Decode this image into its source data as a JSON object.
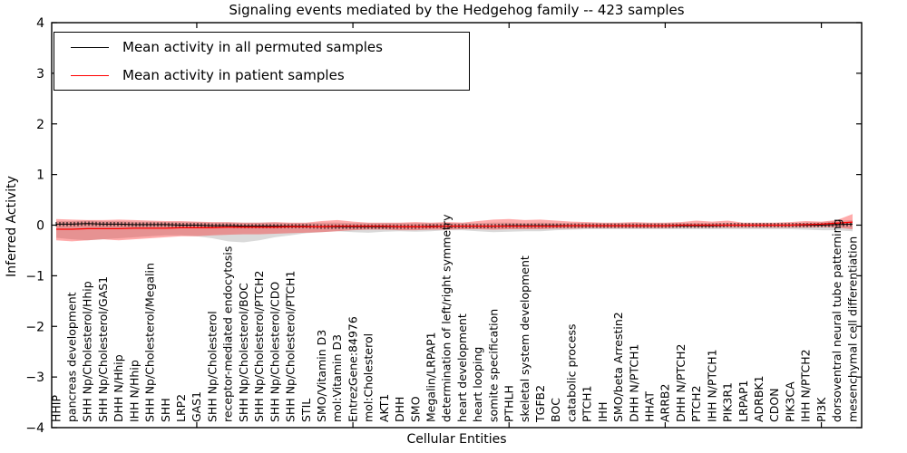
{
  "chart_data": {
    "type": "line",
    "title": "Signaling events mediated by the Hedgehog family -- 423 samples",
    "xlabel": "Cellular Entities",
    "ylabel": "Inferred Activity",
    "ylim": [
      -4,
      4
    ],
    "ytick_values": [
      4,
      3,
      2,
      1,
      0,
      -1,
      -2,
      -3,
      -4
    ],
    "ytick_labels": [
      "4",
      "3",
      "2",
      "1",
      "0",
      "−1",
      "−2",
      "−3",
      "−4"
    ],
    "x_numeric_ticks": [
      10,
      20,
      30,
      40,
      50
    ],
    "grid": false,
    "legend_position": "upper left",
    "background": "#ffffff",
    "categories": [
      "HHIP",
      "pancreas development",
      "SHH Np/Cholesterol/Hhip",
      "SHH Np/Cholesterol/GAS1",
      "DHH N/Hhip",
      "IHH N/Hhip",
      "SHH Np/Cholesterol/Megalin",
      "SHH",
      "LRP2",
      "GAS1",
      "SHH Np/Cholesterol",
      "receptor-mediated endocytosis",
      "SHH Np/Cholesterol/BOC",
      "SHH Np/Cholesterol/PTCH2",
      "SHH Np/Cholesterol/CDO",
      "SHH Np/Cholesterol/PTCH1",
      "STIL",
      "SMO/Vitamin D3",
      "mol:Vitamin D3",
      "EntrezGene:84976",
      "mol:Cholesterol",
      "AKT1",
      "DHH",
      "SMO",
      "Megalin/LRPAP1",
      "determination of left/right symmetry",
      "heart development",
      "heart looping",
      "somite specification",
      "PTHLH",
      "skeletal system development",
      "TGFB2",
      "BOC",
      "catabolic process",
      "PTCH1",
      "IHH",
      "SMO/beta Arrestin2",
      "DHH N/PTCH1",
      "HHAT",
      "ARRB2",
      "DHH N/PTCH2",
      "PTCH2",
      "IHH N/PTCH1",
      "PIK3R1",
      "LRPAP1",
      "ADRBK1",
      "CDON",
      "PIK3CA",
      "IHH N/PTCH2",
      "PI3K",
      "dorsoventral neural tube patterning",
      "mesenchymal cell differentiation"
    ],
    "series": [
      {
        "name": "Mean activity in all permuted samples",
        "color": "#000000",
        "marker": "vertical-tick",
        "values": [
          0.02,
          0.02,
          0.03,
          0.02,
          0.02,
          0.01,
          0.01,
          0.01,
          0.0,
          0.0,
          -0.01,
          -0.01,
          -0.02,
          -0.02,
          -0.02,
          -0.02,
          -0.02,
          -0.03,
          -0.03,
          -0.03,
          -0.03,
          -0.03,
          -0.03,
          -0.03,
          -0.02,
          -0.02,
          -0.02,
          -0.02,
          -0.02,
          -0.01,
          -0.01,
          -0.01,
          -0.01,
          -0.01,
          -0.01,
          -0.01,
          -0.01,
          -0.01,
          -0.01,
          -0.01,
          -0.01,
          -0.01,
          -0.01,
          0.0,
          0.0,
          0.0,
          0.0,
          0.0,
          0.0,
          0.0,
          0.01,
          0.02
        ],
        "band": {
          "color": "#8c8c8c",
          "opacity": 0.32,
          "upper": [
            0.08,
            0.08,
            0.09,
            0.08,
            0.08,
            0.07,
            0.07,
            0.06,
            0.06,
            0.06,
            0.05,
            0.05,
            0.05,
            0.05,
            0.05,
            0.04,
            0.04,
            0.05,
            0.05,
            0.04,
            0.04,
            0.04,
            0.04,
            0.04,
            0.04,
            0.04,
            0.04,
            0.04,
            0.05,
            0.05,
            0.04,
            0.05,
            0.04,
            0.04,
            0.04,
            0.04,
            0.04,
            0.04,
            0.04,
            0.04,
            0.04,
            0.04,
            0.04,
            0.04,
            0.04,
            0.04,
            0.04,
            0.04,
            0.05,
            0.06,
            0.08,
            0.1
          ],
          "lower": [
            -0.25,
            -0.28,
            -0.3,
            -0.28,
            -0.26,
            -0.24,
            -0.22,
            -0.2,
            -0.2,
            -0.22,
            -0.26,
            -0.32,
            -0.34,
            -0.3,
            -0.24,
            -0.2,
            -0.16,
            -0.14,
            -0.12,
            -0.14,
            -0.15,
            -0.13,
            -0.12,
            -0.13,
            -0.12,
            -0.1,
            -0.1,
            -0.12,
            -0.14,
            -0.13,
            -0.12,
            -0.12,
            -0.1,
            -0.09,
            -0.08,
            -0.08,
            -0.08,
            -0.08,
            -0.08,
            -0.08,
            -0.08,
            -0.08,
            -0.08,
            -0.08,
            -0.08,
            -0.08,
            -0.08,
            -0.08,
            -0.09,
            -0.1,
            -0.1,
            -0.12
          ]
        }
      },
      {
        "name": "Mean activity in patient samples",
        "color": "#ff0000",
        "marker": "none",
        "values": [
          -0.08,
          -0.08,
          -0.07,
          -0.07,
          -0.07,
          -0.06,
          -0.06,
          -0.06,
          -0.05,
          -0.05,
          -0.05,
          -0.04,
          -0.04,
          -0.04,
          -0.04,
          -0.03,
          -0.03,
          -0.03,
          -0.02,
          -0.02,
          -0.02,
          -0.02,
          -0.03,
          -0.03,
          -0.03,
          -0.02,
          -0.02,
          -0.02,
          -0.02,
          -0.02,
          -0.02,
          -0.02,
          -0.02,
          -0.01,
          -0.01,
          -0.01,
          -0.01,
          -0.01,
          -0.01,
          -0.01,
          0.0,
          0.0,
          0.0,
          0.0,
          0.0,
          0.0,
          0.0,
          0.0,
          0.01,
          0.02,
          0.04,
          0.06
        ],
        "band": {
          "color": "#ff0000",
          "opacity": 0.33,
          "upper": [
            0.12,
            0.11,
            0.1,
            0.1,
            0.11,
            0.1,
            0.09,
            0.08,
            0.08,
            0.07,
            0.06,
            0.06,
            0.05,
            0.05,
            0.06,
            0.05,
            0.05,
            0.08,
            0.1,
            0.07,
            0.05,
            0.05,
            0.05,
            0.06,
            0.05,
            0.06,
            0.05,
            0.08,
            0.11,
            0.12,
            0.1,
            0.11,
            0.09,
            0.07,
            0.06,
            0.05,
            0.05,
            0.06,
            0.05,
            0.05,
            0.06,
            0.09,
            0.07,
            0.09,
            0.05,
            0.05,
            0.05,
            0.06,
            0.08,
            0.07,
            0.1,
            0.22
          ],
          "lower": [
            -0.3,
            -0.32,
            -0.3,
            -0.28,
            -0.3,
            -0.28,
            -0.26,
            -0.24,
            -0.22,
            -0.22,
            -0.2,
            -0.19,
            -0.18,
            -0.18,
            -0.17,
            -0.16,
            -0.15,
            -0.14,
            -0.12,
            -0.1,
            -0.09,
            -0.09,
            -0.1,
            -0.1,
            -0.09,
            -0.09,
            -0.08,
            -0.08,
            -0.09,
            -0.08,
            -0.08,
            -0.08,
            -0.07,
            -0.07,
            -0.06,
            -0.06,
            -0.06,
            -0.06,
            -0.06,
            -0.06,
            -0.05,
            -0.05,
            -0.05,
            -0.05,
            -0.05,
            -0.05,
            -0.05,
            -0.05,
            -0.05,
            -0.04,
            -0.05,
            -0.08
          ]
        }
      }
    ]
  }
}
